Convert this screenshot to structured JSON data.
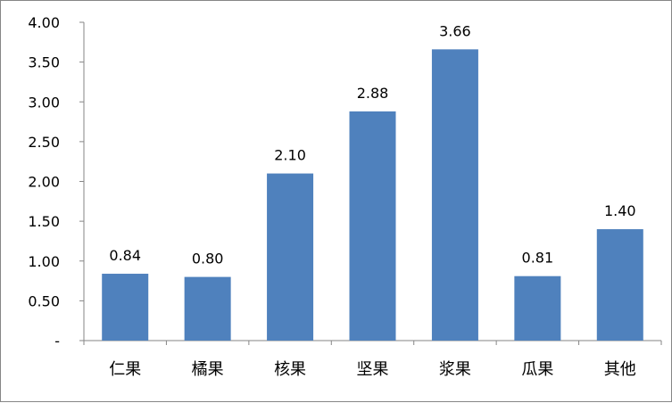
{
  "chart_data": {
    "type": "bar",
    "categories": [
      "仁果",
      "橘果",
      "核果",
      "坚果",
      "浆果",
      "瓜果",
      "其他"
    ],
    "series": [
      {
        "values": [
          0.84,
          0.8,
          2.1,
          2.88,
          3.66,
          0.81,
          1.4
        ]
      }
    ],
    "data_labels": [
      "0.84",
      "0.80",
      "2.10",
      "2.88",
      "3.66",
      "0.81",
      "1.40"
    ],
    "y_ticks": [
      "-",
      "0.50",
      "1.00",
      "1.50",
      "2.00",
      "2.50",
      "3.00",
      "3.50",
      "4.00"
    ],
    "ylim": [
      0,
      4
    ],
    "grid": false,
    "legend": "none",
    "bar_color": "#4F81BD",
    "axis_color": "#868686"
  }
}
